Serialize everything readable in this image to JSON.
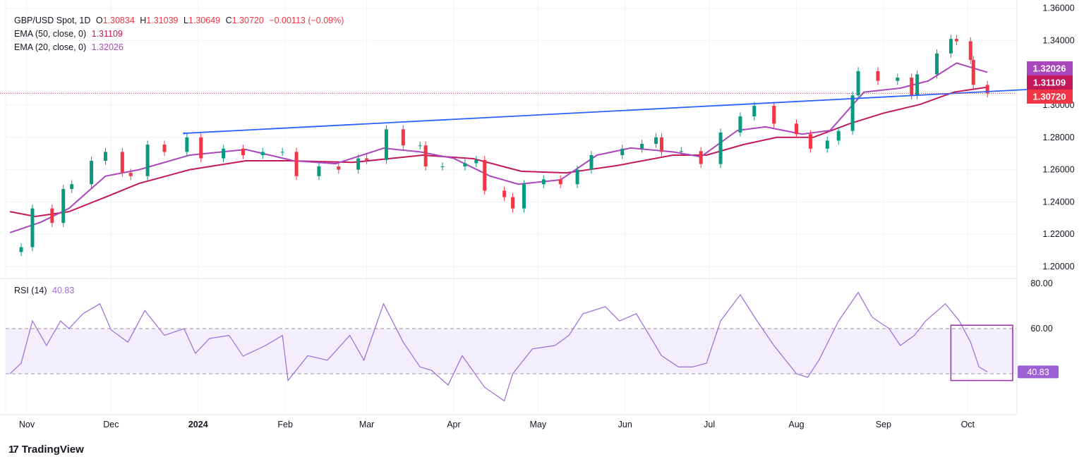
{
  "header": {
    "symbol": "GBP/USD Spot, 1D",
    "o_label": "O",
    "o": "1.30834",
    "h_label": "H",
    "h": "1.31039",
    "l_label": "L",
    "l": "1.30649",
    "c_label": "C",
    "c": "1.30720",
    "change": "−0.00113 (−0.09%)",
    "ema50_label": "EMA (50, close, 0)",
    "ema50_value": "1.31109",
    "ema20_label": "EMA (20, close, 0)",
    "ema20_value": "1.32026",
    "rsi_label": "RSI (14)",
    "rsi_value": "40.83"
  },
  "footer": {
    "brand": "TradingView"
  },
  "colors": {
    "up": "#089981",
    "down": "#f23645",
    "ema50": "#c2185b",
    "ema20": "#ab47bc",
    "trendline": "#2962ff",
    "rsi": "#9c6ad6",
    "rsi_band": "#f3eefb"
  },
  "chart_data": {
    "type": "candlestick",
    "price_axis": {
      "ylim": [
        1.195,
        1.362
      ],
      "ticks": [
        "1.36000",
        "1.34000",
        "1.30000",
        "1.28000",
        "1.26000",
        "1.24000",
        "1.22000",
        "1.20000"
      ],
      "tick_values": [
        1.36,
        1.34,
        1.3,
        1.28,
        1.26,
        1.24,
        1.22,
        1.2
      ]
    },
    "time_axis": {
      "labels": [
        "Nov",
        "Dec",
        "2024",
        "Feb",
        "Mar",
        "Apr",
        "May",
        "Jun",
        "Jul",
        "Aug",
        "Sep",
        "Oct"
      ],
      "dates": [
        "2023-11-01",
        "2023-12-01",
        "2024-01-01",
        "2024-02-01",
        "2024-03-01",
        "2024-04-01",
        "2024-05-01",
        "2024-06-01",
        "2024-07-01",
        "2024-08-01",
        "2024-09-01",
        "2024-10-01"
      ]
    },
    "price_tags": [
      {
        "label": "1.32026",
        "value": 1.32026,
        "color": "#ab47bc"
      },
      {
        "label": "1.31109",
        "value": 1.31109,
        "color": "#c2185b"
      },
      {
        "label": "1.30720",
        "value": 1.3072,
        "color": "#f23645"
      }
    ],
    "last_price": 1.3072,
    "closes": [
      [
        "2023-10-30",
        1.212
      ],
      [
        "2023-11-03",
        1.236
      ],
      [
        "2023-11-10",
        1.227
      ],
      [
        "2023-11-14",
        1.248
      ],
      [
        "2023-11-17",
        1.251
      ],
      [
        "2023-11-24",
        1.2655
      ],
      [
        "2023-11-29",
        1.271
      ],
      [
        "2023-12-05",
        1.258
      ],
      [
        "2023-12-08",
        1.256
      ],
      [
        "2023-12-14",
        1.2755
      ],
      [
        "2023-12-20",
        1.271
      ],
      [
        "2023-12-28",
        1.28
      ],
      [
        "2024-01-02",
        1.267
      ],
      [
        "2024-01-10",
        1.273
      ],
      [
        "2024-01-17",
        1.269
      ],
      [
        "2024-01-24",
        1.271
      ],
      [
        "2024-01-31",
        1.271
      ],
      [
        "2024-02-05",
        1.256
      ],
      [
        "2024-02-13",
        1.262
      ],
      [
        "2024-02-20",
        1.26
      ],
      [
        "2024-02-27",
        1.267
      ],
      [
        "2024-03-01",
        1.266
      ],
      [
        "2024-03-08",
        1.285
      ],
      [
        "2024-03-14",
        1.275
      ],
      [
        "2024-03-20",
        1.275
      ],
      [
        "2024-03-22",
        1.262
      ],
      [
        "2024-03-28",
        1.262
      ],
      [
        "2024-04-05",
        1.264
      ],
      [
        "2024-04-09",
        1.266
      ],
      [
        "2024-04-12",
        1.247
      ],
      [
        "2024-04-19",
        1.243
      ],
      [
        "2024-04-22",
        1.236
      ],
      [
        "2024-04-26",
        1.251
      ],
      [
        "2024-05-03",
        1.254
      ],
      [
        "2024-05-09",
        1.251
      ],
      [
        "2024-05-15",
        1.26
      ],
      [
        "2024-05-20",
        1.269
      ],
      [
        "2024-05-31",
        1.273
      ],
      [
        "2024-06-07",
        1.276
      ],
      [
        "2024-06-12",
        1.28
      ],
      [
        "2024-06-14",
        1.271
      ],
      [
        "2024-06-21",
        1.2715
      ],
      [
        "2024-06-28",
        1.2635
      ],
      [
        "2024-07-05",
        1.283
      ],
      [
        "2024-07-12",
        1.293
      ],
      [
        "2024-07-17",
        1.2995
      ],
      [
        "2024-07-24",
        1.2885
      ],
      [
        "2024-08-01",
        1.282
      ],
      [
        "2024-08-06",
        1.273
      ],
      [
        "2024-08-12",
        1.278
      ],
      [
        "2024-08-16",
        1.284
      ],
      [
        "2024-08-21",
        1.306
      ],
      [
        "2024-08-23",
        1.321
      ],
      [
        "2024-08-30",
        1.315
      ],
      [
        "2024-09-06",
        1.317
      ],
      [
        "2024-09-11",
        1.306
      ],
      [
        "2024-09-13",
        1.319
      ],
      [
        "2024-09-20",
        1.332
      ],
      [
        "2024-09-25",
        1.341
      ],
      [
        "2024-09-27",
        1.3395
      ],
      [
        "2024-10-02",
        1.328
      ],
      [
        "2024-10-03",
        1.3125
      ],
      [
        "2024-10-08",
        1.3072
      ]
    ],
    "ema50": [
      [
        "2023-10-26",
        1.234
      ],
      [
        "2023-11-04",
        1.231
      ],
      [
        "2023-11-16",
        1.234
      ],
      [
        "2023-11-29",
        1.243
      ],
      [
        "2023-12-11",
        1.2515
      ],
      [
        "2023-12-29",
        1.26
      ],
      [
        "2024-01-18",
        1.2655
      ],
      [
        "2024-02-02",
        1.2655
      ],
      [
        "2024-02-25",
        1.2645
      ],
      [
        "2024-03-21",
        1.269
      ],
      [
        "2024-04-08",
        1.2668
      ],
      [
        "2024-04-25",
        1.259
      ],
      [
        "2024-05-11",
        1.258
      ],
      [
        "2024-05-29",
        1.2625
      ],
      [
        "2024-06-18",
        1.269
      ],
      [
        "2024-06-30",
        1.269
      ],
      [
        "2024-07-13",
        1.2755
      ],
      [
        "2024-07-25",
        1.28
      ],
      [
        "2024-08-07",
        1.28
      ],
      [
        "2024-08-20",
        1.2885
      ],
      [
        "2024-09-01",
        1.295
      ],
      [
        "2024-09-14",
        1.3004
      ],
      [
        "2024-09-26",
        1.308
      ],
      [
        "2024-10-08",
        1.3111
      ]
    ],
    "ema20": [
      [
        "2023-10-26",
        1.221
      ],
      [
        "2023-11-06",
        1.2275
      ],
      [
        "2023-11-16",
        1.236
      ],
      [
        "2023-11-29",
        1.256
      ],
      [
        "2023-12-11",
        1.26
      ],
      [
        "2023-12-29",
        1.269
      ],
      [
        "2024-01-18",
        1.2725
      ],
      [
        "2024-02-04",
        1.2655
      ],
      [
        "2024-02-19",
        1.2637
      ],
      [
        "2024-03-07",
        1.2733
      ],
      [
        "2024-03-20",
        1.271
      ],
      [
        "2024-04-01",
        1.267
      ],
      [
        "2024-04-14",
        1.256
      ],
      [
        "2024-04-24",
        1.251
      ],
      [
        "2024-05-09",
        1.2537
      ],
      [
        "2024-05-22",
        1.269
      ],
      [
        "2024-06-03",
        1.2734
      ],
      [
        "2024-06-18",
        1.271
      ],
      [
        "2024-06-28",
        1.268
      ],
      [
        "2024-07-11",
        1.2843
      ],
      [
        "2024-07-21",
        1.2865
      ],
      [
        "2024-08-03",
        1.282
      ],
      [
        "2024-08-13",
        1.2843
      ],
      [
        "2024-08-25",
        1.308
      ],
      [
        "2024-09-07",
        1.3105
      ],
      [
        "2024-09-17",
        1.315
      ],
      [
        "2024-09-27",
        1.326
      ],
      [
        "2024-10-08",
        1.3203
      ]
    ],
    "trendline": [
      [
        "2023-12-27",
        1.2825
      ],
      [
        "2024-10-22",
        1.3096
      ]
    ],
    "rsi": {
      "ylim": [
        20,
        83
      ],
      "ticks": [
        "80.00",
        "60.00"
      ],
      "tick_values": [
        80,
        60
      ],
      "band": [
        40,
        60
      ],
      "values": [
        [
          "2023-10-26",
          40
        ],
        [
          "2023-10-30",
          44.7
        ],
        [
          "2023-11-03",
          63.4
        ],
        [
          "2023-11-08",
          52.5
        ],
        [
          "2023-11-13",
          63.4
        ],
        [
          "2023-11-16",
          60
        ],
        [
          "2023-11-21",
          66.6
        ],
        [
          "2023-11-27",
          71
        ],
        [
          "2023-12-01",
          59.4
        ],
        [
          "2023-12-07",
          54
        ],
        [
          "2023-12-13",
          68
        ],
        [
          "2023-12-20",
          57
        ],
        [
          "2023-12-27",
          60
        ],
        [
          "2023-12-31",
          49
        ],
        [
          "2024-01-05",
          55.6
        ],
        [
          "2024-01-12",
          57
        ],
        [
          "2024-01-17",
          47.8
        ],
        [
          "2024-01-25",
          52.5
        ],
        [
          "2024-01-31",
          57
        ],
        [
          "2024-02-02",
          37
        ],
        [
          "2024-02-09",
          48
        ],
        [
          "2024-02-16",
          46
        ],
        [
          "2024-02-24",
          57
        ],
        [
          "2024-02-29",
          46
        ],
        [
          "2024-03-07",
          71
        ],
        [
          "2024-03-14",
          54
        ],
        [
          "2024-03-20",
          43
        ],
        [
          "2024-03-24",
          41.6
        ],
        [
          "2024-03-30",
          35
        ],
        [
          "2024-04-04",
          48
        ],
        [
          "2024-04-12",
          34
        ],
        [
          "2024-04-19",
          28
        ],
        [
          "2024-04-22",
          40
        ],
        [
          "2024-04-29",
          51
        ],
        [
          "2024-05-07",
          52.5
        ],
        [
          "2024-05-12",
          57
        ],
        [
          "2024-05-17",
          66.6
        ],
        [
          "2024-05-25",
          69.7
        ],
        [
          "2024-05-30",
          63.4
        ],
        [
          "2024-06-05",
          66.6
        ],
        [
          "2024-06-14",
          48
        ],
        [
          "2024-06-20",
          43
        ],
        [
          "2024-06-25",
          43
        ],
        [
          "2024-06-30",
          44.7
        ],
        [
          "2024-07-05",
          63.4
        ],
        [
          "2024-07-12",
          75
        ],
        [
          "2024-07-18",
          63.4
        ],
        [
          "2024-07-24",
          52.5
        ],
        [
          "2024-08-01",
          40
        ],
        [
          "2024-08-05",
          38.4
        ],
        [
          "2024-08-09",
          46
        ],
        [
          "2024-08-16",
          63.4
        ],
        [
          "2024-08-23",
          76
        ],
        [
          "2024-08-28",
          65
        ],
        [
          "2024-09-03",
          60
        ],
        [
          "2024-09-07",
          52.5
        ],
        [
          "2024-09-12",
          57
        ],
        [
          "2024-09-16",
          63.4
        ],
        [
          "2024-09-23",
          71
        ],
        [
          "2024-09-28",
          63.4
        ],
        [
          "2024-10-02",
          54
        ],
        [
          "2024-10-05",
          43
        ],
        [
          "2024-10-08",
          40.83
        ]
      ],
      "tag": {
        "label": "40.83",
        "value": 40.83
      },
      "box": {
        "from": "2024-09-25",
        "to": "2024-10-17",
        "top": 61.5,
        "bottom": 37
      }
    }
  }
}
